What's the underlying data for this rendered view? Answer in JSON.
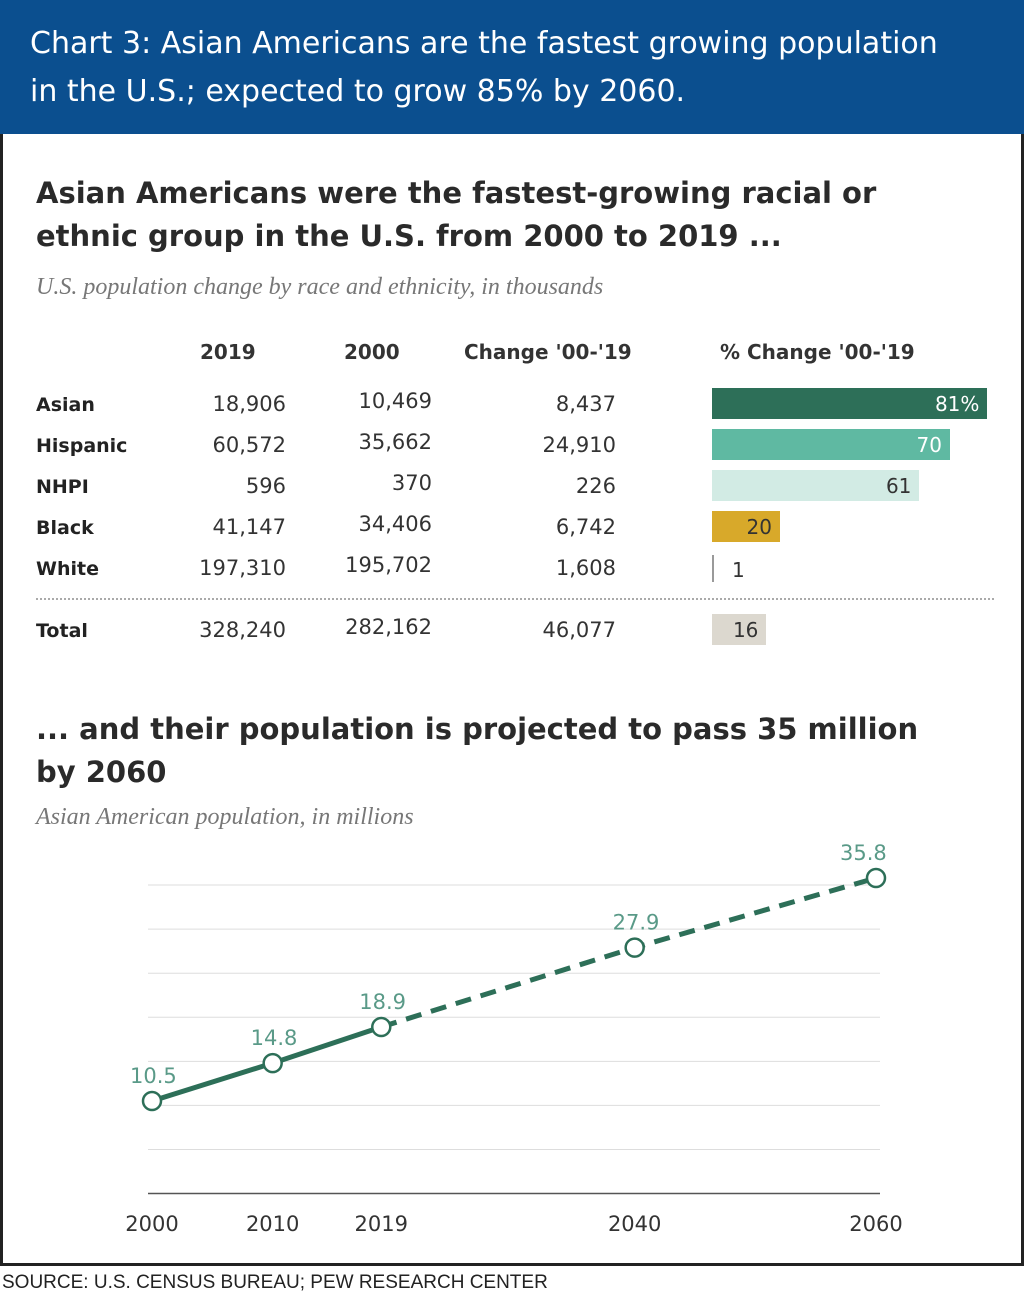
{
  "banner": {
    "line1": "Chart 3: Asian Americans are the fastest growing population",
    "line2": "in the U.S.; expected to grow 85% by 2060."
  },
  "colors": {
    "banner": "#0b4f8f",
    "asian": "#2d6f58",
    "hispanic": "#5fb9a2",
    "nhpi": "#d2ebe4",
    "black": "#d8a92a",
    "white": "#9a9a9a",
    "total": "#dcd8cf",
    "line": "#2d6f58"
  },
  "table_section": {
    "heading_line1": "Asian Americans were the fastest-growing racial or",
    "heading_line2": "ethnic group in the U.S. from 2000 to 2019 ...",
    "subtitle": "U.S. population change by race and ethnicity, in thousands",
    "headers": [
      "2019",
      "2000",
      "Change '00-'19",
      "% Change '00-'19"
    ]
  },
  "chart_data": [
    {
      "type": "table",
      "title": "Asian Americans were the fastest-growing racial or ethnic group in the U.S. from 2000 to 2019 ...",
      "subtitle": "U.S. population change by race and ethnicity, in thousands",
      "columns": [
        "2019",
        "2000",
        "Change '00-'19",
        "% Change '00-'19"
      ],
      "rows": [
        {
          "group": "Asian",
          "y2019": "18,906",
          "y2000": "10,469",
          "change": "8,437",
          "pct": 81,
          "pct_label": "81%"
        },
        {
          "group": "Hispanic",
          "y2019": "60,572",
          "y2000": "35,662",
          "change": "24,910",
          "pct": 70,
          "pct_label": "70"
        },
        {
          "group": "NHPI",
          "y2019": "596",
          "y2000": "370",
          "change": "226",
          "pct": 61,
          "pct_label": "61"
        },
        {
          "group": "Black",
          "y2019": "41,147",
          "y2000": "34,406",
          "change": "6,742",
          "pct": 20,
          "pct_label": "20"
        },
        {
          "group": "White",
          "y2019": "197,310",
          "y2000": "195,702",
          "change": "1,608",
          "pct": 1,
          "pct_label": "1"
        }
      ],
      "total": {
        "group": "Total",
        "y2019": "328,240",
        "y2000": "282,162",
        "change": "46,077",
        "pct": 16,
        "pct_label": "16"
      }
    },
    {
      "type": "line",
      "title": "... and their population is projected to pass 35 million by 2060",
      "subtitle": "Asian American population, in millions",
      "x": [
        2000,
        2010,
        2019,
        2040,
        2060
      ],
      "x_labels": [
        "2000",
        "2010",
        "2019",
        "2040",
        "2060"
      ],
      "values": [
        10.5,
        14.8,
        18.9,
        27.9,
        35.8
      ],
      "value_labels": [
        "10.5",
        "14.8",
        "18.9",
        "27.9",
        "35.8"
      ],
      "projected_from": 2019,
      "ylim": [
        0,
        35
      ],
      "grid": true
    }
  ],
  "line_section": {
    "heading_line1": "... and their population is projected to pass 35 million",
    "heading_line2": "by 2060",
    "subtitle": "Asian American population, in millions"
  },
  "source": "SOURCE: U.S. CENSUS BUREAU; PEW RESEARCH CENTER"
}
